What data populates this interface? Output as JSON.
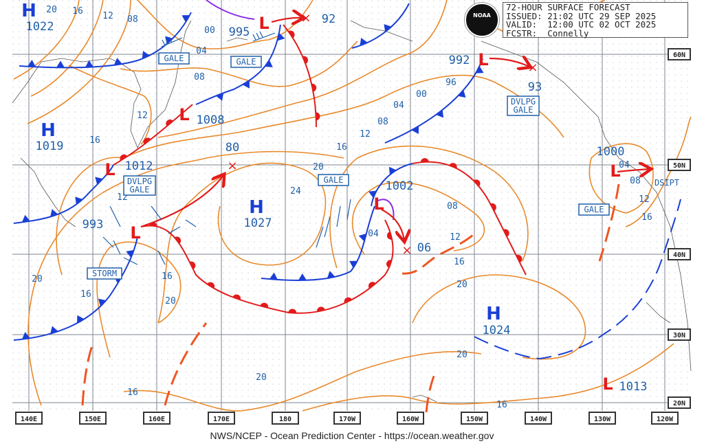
{
  "header": {
    "line1": "72-HOUR SURFACE FORECAST",
    "line2": "ISSUED: 21:02 UTC 29 SEP 2025",
    "line3": "VALID:  12:00 UTC 02 OCT 2025",
    "line4": "FCSTR:  Connelly"
  },
  "logo": {
    "text": "NOAA"
  },
  "footer": "NWS/NCEP - Ocean Prediction Center - https://ocean.weather.gov",
  "colors": {
    "isobar": "#e8892b",
    "high": "#1a3fd6",
    "low": "#e21b1b",
    "cold_front": "#1a3fd6",
    "warm_front": "#e21b1b",
    "occluded_front": "#8a2be2",
    "labels": "#1f5fa8"
  },
  "longitudes": [
    "140E",
    "150E",
    "160E",
    "170E",
    "180",
    "170W",
    "160W",
    "150W",
    "140W",
    "130W",
    "120W"
  ],
  "latitudes": [
    "60N",
    "50N",
    "40N",
    "30N",
    "20N"
  ],
  "highs": [
    {
      "symbol": "H",
      "pressure": "1022"
    },
    {
      "symbol": "H",
      "pressure": "1019"
    },
    {
      "symbol": "H",
      "pressure": "1027"
    },
    {
      "symbol": "H",
      "pressure": "1024"
    }
  ],
  "lows": [
    {
      "symbol": "L",
      "pressure": "995"
    },
    {
      "symbol": "L",
      "pressure": "1008"
    },
    {
      "symbol": "L",
      "pressure": "1012"
    },
    {
      "symbol": "L",
      "pressure": "993"
    },
    {
      "symbol": "L",
      "pressure": "1002"
    },
    {
      "symbol": "L",
      "pressure": "992"
    },
    {
      "symbol": "L",
      "pressure": "1000"
    },
    {
      "symbol": "L",
      "pressure": "1013"
    }
  ],
  "forecast_positions": [
    {
      "marker": "×",
      "pressure": "92"
    },
    {
      "marker": "×",
      "pressure": "80"
    },
    {
      "marker": "×",
      "pressure": "06"
    },
    {
      "marker": "×",
      "pressure": "93"
    }
  ],
  "warnings": [
    "GALE",
    "GALE",
    "DVLPG",
    "GALE",
    "DVLPG",
    "GALE",
    "GALE",
    "STORM",
    "GALE",
    "DSIPT"
  ],
  "isobar_labels": [
    "20",
    "16",
    "12",
    "08",
    "00",
    "04",
    "08",
    "12",
    "16",
    "20",
    "16",
    "20",
    "16",
    "12",
    "24",
    "20",
    "16",
    "12",
    "08",
    "04",
    "00",
    "96",
    "04",
    "08",
    "12",
    "16",
    "20",
    "20",
    "20",
    "16",
    "16",
    "04",
    "08",
    "12",
    "16"
  ]
}
